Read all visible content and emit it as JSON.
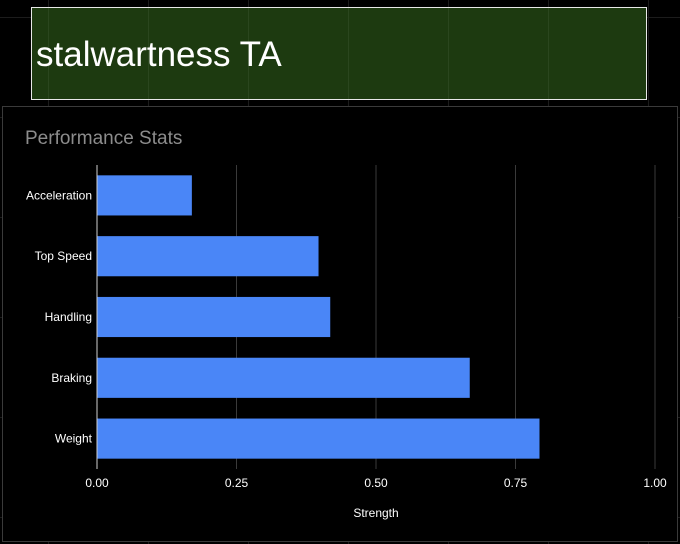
{
  "banner": {
    "title": "stalwartness TA",
    "background": "#1d3a10"
  },
  "chart_data": {
    "type": "bar",
    "orientation": "horizontal",
    "title": "Performance Stats",
    "categories": [
      "Acceleration",
      "Top Speed",
      "Handling",
      "Braking",
      "Weight"
    ],
    "values": [
      0.17,
      0.397,
      0.418,
      0.668,
      0.793
    ],
    "xlabel": "Strength",
    "ylabel": "",
    "xlim": [
      0,
      1
    ],
    "xticks": [
      "0.00",
      "0.25",
      "0.50",
      "0.75",
      "1.00"
    ],
    "grid": true,
    "bar_color": "#4a86f7"
  }
}
